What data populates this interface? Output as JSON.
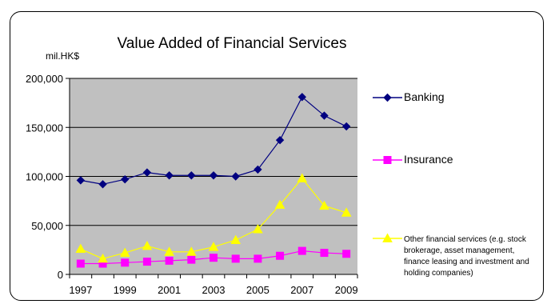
{
  "chart_data": {
    "type": "line",
    "title": "Value Added of Financial Services",
    "ylabel": "mil.HK$",
    "xlabel": "",
    "ylim": [
      0,
      200000
    ],
    "y_ticks": [
      0,
      50000,
      100000,
      150000,
      200000
    ],
    "y_tick_labels": [
      "0",
      "50,000",
      "100,000",
      "150,000",
      "200,000"
    ],
    "x": [
      1997,
      1998,
      1999,
      2000,
      2001,
      2002,
      2003,
      2004,
      2005,
      2006,
      2007,
      2008,
      2009
    ],
    "x_tick_labels": [
      "1997",
      "1999",
      "2001",
      "2003",
      "2005",
      "2007",
      "2009"
    ],
    "grid": true,
    "legend_position": "right",
    "series": [
      {
        "name": "Banking",
        "color": "#000080",
        "marker": "diamond",
        "values": [
          96000,
          92000,
          97000,
          104000,
          101000,
          101000,
          101000,
          100000,
          107000,
          137000,
          181000,
          162000,
          151000
        ]
      },
      {
        "name": "Insurance",
        "color": "#FF00FF",
        "marker": "square",
        "values": [
          11000,
          11000,
          12000,
          13000,
          14000,
          15000,
          17000,
          16000,
          16000,
          19000,
          24000,
          22000,
          21000
        ]
      },
      {
        "name_lines": [
          "Other financial services (e.g. stock",
          "brokerage, asset management,",
          "finance leasing and investment and",
          "holding companies)"
        ],
        "name": "Other financial services (e.g. stock brokerage, asset management, finance leasing and investment and holding companies)",
        "color": "#FFFF00",
        "marker": "triangle",
        "values": [
          26000,
          16000,
          22000,
          29000,
          23000,
          23000,
          28000,
          35000,
          46000,
          71000,
          98000,
          70000,
          63000
        ]
      }
    ]
  }
}
